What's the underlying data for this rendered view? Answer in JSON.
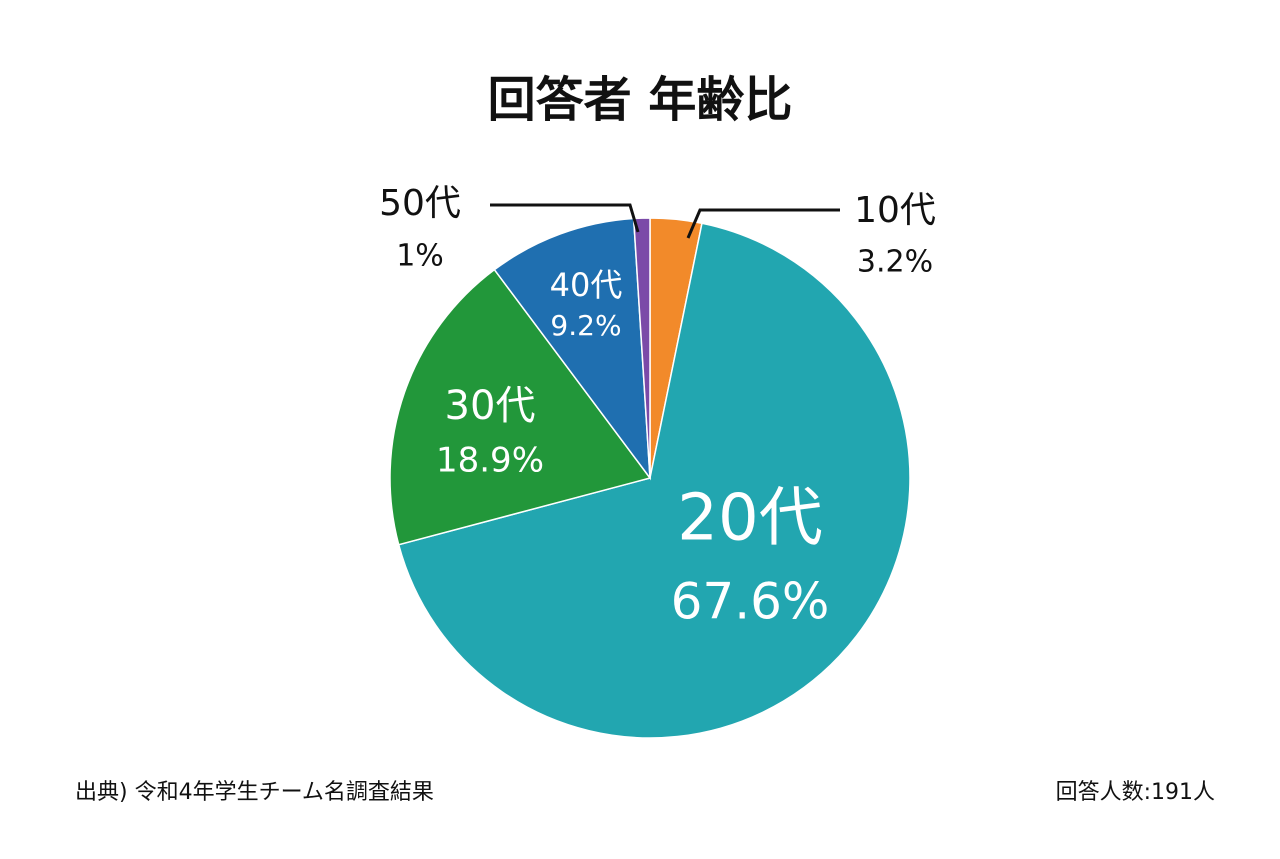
{
  "chart_data": {
    "type": "pie",
    "title": "回答者 年齢比",
    "categories": [
      "10代",
      "20代",
      "30代",
      "40代",
      "50代"
    ],
    "values": [
      3.2,
      67.6,
      18.9,
      9.2,
      1
    ],
    "value_labels": [
      "3.2%",
      "67.6%",
      "18.9%",
      "9.2%",
      "1%"
    ],
    "colors": [
      "#f28a2a",
      "#22a6b0",
      "#22973a",
      "#1f6fb0",
      "#7b4aa8"
    ],
    "source": "出典) 令和4年学生チーム名調査結果",
    "note": "回答人数:191人"
  }
}
